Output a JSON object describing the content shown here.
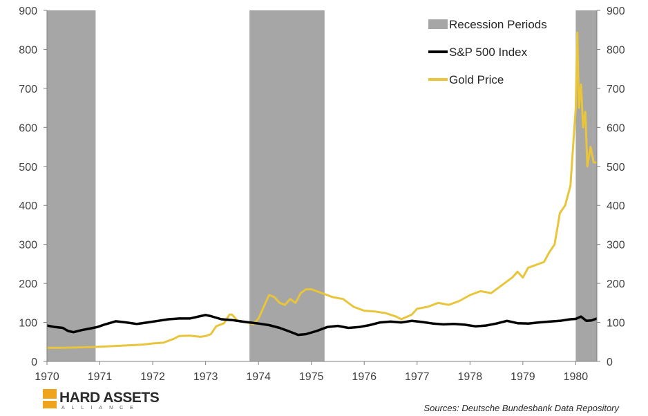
{
  "chart_data": {
    "type": "line",
    "x_ticks": [
      "1970",
      "1971",
      "1972",
      "1973",
      "1974",
      "1975",
      "1976",
      "1977",
      "1978",
      "1979",
      "1980"
    ],
    "y_ticks": [
      "0",
      "100",
      "200",
      "300",
      "400",
      "500",
      "600",
      "700",
      "800",
      "900"
    ],
    "y_right_ticks": [
      "0",
      "100",
      "200",
      "300",
      "400",
      "500",
      "600",
      "700",
      "800",
      "900"
    ],
    "xlim": [
      1970.0,
      1980.4
    ],
    "ylim": [
      0,
      900
    ],
    "grid": false,
    "legend_position": "top-right",
    "recessions": [
      [
        1970.0,
        1970.92
      ],
      [
        1973.83,
        1975.25
      ],
      [
        1980.0,
        1980.55
      ]
    ],
    "legend": [
      {
        "key": "recession",
        "label": "Recession Periods"
      },
      {
        "key": "sp500",
        "label": "S&P 500 Index"
      },
      {
        "key": "gold",
        "label": "Gold Price"
      }
    ],
    "series": [
      {
        "key": "sp500",
        "name": "S&P 500 Index",
        "color": "#000000",
        "x": [
          1970.0,
          1970.15,
          1970.3,
          1970.4,
          1970.5,
          1970.65,
          1970.8,
          1970.95,
          1971.1,
          1971.3,
          1971.5,
          1971.7,
          1971.9,
          1972.1,
          1972.3,
          1972.5,
          1972.7,
          1972.9,
          1973.0,
          1973.1,
          1973.3,
          1973.5,
          1973.7,
          1973.83,
          1974.0,
          1974.2,
          1974.4,
          1974.6,
          1974.75,
          1974.9,
          1975.1,
          1975.3,
          1975.5,
          1975.7,
          1975.9,
          1976.1,
          1976.3,
          1976.5,
          1976.7,
          1976.9,
          1977.1,
          1977.3,
          1977.5,
          1977.7,
          1977.9,
          1978.1,
          1978.3,
          1978.5,
          1978.7,
          1978.9,
          1979.1,
          1979.3,
          1979.5,
          1979.7,
          1979.9,
          1980.0,
          1980.1,
          1980.2,
          1980.3,
          1980.4
        ],
        "values": [
          92,
          88,
          86,
          78,
          75,
          80,
          84,
          88,
          95,
          103,
          100,
          96,
          100,
          104,
          108,
          110,
          110,
          116,
          119,
          116,
          108,
          106,
          102,
          100,
          97,
          93,
          86,
          76,
          68,
          70,
          78,
          88,
          91,
          86,
          88,
          93,
          100,
          102,
          100,
          104,
          101,
          97,
          95,
          96,
          94,
          90,
          92,
          97,
          104,
          98,
          97,
          100,
          102,
          104,
          108,
          109,
          115,
          104,
          105,
          110
        ]
      },
      {
        "key": "gold",
        "name": "Gold Price",
        "color": "#e8c53a",
        "x": [
          1970.0,
          1970.3,
          1970.6,
          1970.9,
          1971.2,
          1971.5,
          1971.8,
          1972.0,
          1972.2,
          1972.4,
          1972.5,
          1972.7,
          1972.9,
          1973.0,
          1973.1,
          1973.2,
          1973.35,
          1973.45,
          1973.5,
          1973.6,
          1973.8,
          1973.9,
          1974.0,
          1974.1,
          1974.2,
          1974.3,
          1974.4,
          1974.5,
          1974.6,
          1974.7,
          1974.8,
          1974.9,
          1975.0,
          1975.2,
          1975.4,
          1975.6,
          1975.8,
          1976.0,
          1976.2,
          1976.4,
          1976.6,
          1976.7,
          1976.9,
          1977.0,
          1977.2,
          1977.4,
          1977.6,
          1977.8,
          1978.0,
          1978.2,
          1978.4,
          1978.6,
          1978.8,
          1978.9,
          1979.0,
          1979.1,
          1979.2,
          1979.4,
          1979.5,
          1979.6,
          1979.7,
          1979.75,
          1979.8,
          1979.9,
          1980.0,
          1980.03,
          1980.06,
          1980.1,
          1980.14,
          1980.18,
          1980.22,
          1980.28,
          1980.34,
          1980.4
        ],
        "values": [
          35,
          35,
          36,
          37,
          39,
          41,
          43,
          46,
          48,
          58,
          65,
          66,
          63,
          65,
          70,
          90,
          98,
          120,
          120,
          105,
          100,
          95,
          110,
          140,
          170,
          165,
          150,
          145,
          160,
          150,
          175,
          185,
          185,
          175,
          165,
          160,
          140,
          130,
          128,
          124,
          115,
          108,
          120,
          135,
          140,
          150,
          145,
          155,
          170,
          180,
          175,
          195,
          215,
          230,
          215,
          240,
          245,
          255,
          280,
          300,
          380,
          390,
          400,
          450,
          650,
          843,
          650,
          710,
          600,
          640,
          500,
          550,
          510,
          510
        ]
      }
    ]
  },
  "source_text": "Sources: Deutsche Bundesbank Data Repository",
  "brand": {
    "name": "HARD ASSETS",
    "subtitle": "ALLIANCE"
  }
}
